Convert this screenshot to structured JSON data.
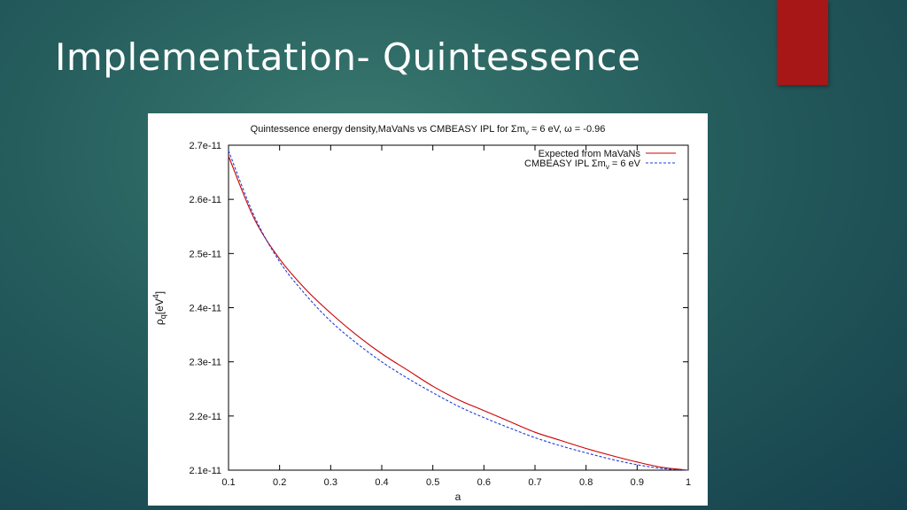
{
  "slide": {
    "title": "Implementation- Quintessence",
    "accent_color": "#a81717"
  },
  "chart_data": {
    "type": "line",
    "title": "Quintessence energy density,MaVaNs vs CMBEASY IPL for Σmν = 6 eV, ω = -0.96",
    "title_parts": {
      "prefix": "Quintessence energy density,MaVaNs vs CMBEASY IPL for Σm",
      "sub": "ν",
      "suffix": " = 6 eV, ω = -0.96"
    },
    "xlabel": "a",
    "ylabel": "ρq[eV4]",
    "ylabel_parts": {
      "base": "ρ",
      "sub": "q",
      "mid": "[eV",
      "sup": "4",
      "end": "]"
    },
    "xlim": [
      0.1,
      1
    ],
    "ylim": [
      2.1e-11,
      2.7e-11
    ],
    "x_ticks": [
      "0.1",
      "0.2",
      "0.3",
      "0.4",
      "0.5",
      "0.6",
      "0.7",
      "0.8",
      "0.9",
      "1"
    ],
    "y_ticks": [
      "2.1e-11",
      "2.2e-11",
      "2.3e-11",
      "2.4e-11",
      "2.5e-11",
      "2.6e-11",
      "2.7e-11"
    ],
    "grid": false,
    "legend_position": "top-right",
    "series": [
      {
        "name": "Expected from MaVaNs",
        "color": "#cc0000",
        "dash": "solid",
        "x": [
          0.1,
          0.15,
          0.2,
          0.25,
          0.3,
          0.35,
          0.4,
          0.45,
          0.5,
          0.55,
          0.6,
          0.65,
          0.7,
          0.75,
          0.8,
          0.85,
          0.9,
          0.95,
          1.0
        ],
        "y": [
          2.68e-11,
          2.565e-11,
          2.49e-11,
          2.435e-11,
          2.39e-11,
          2.35e-11,
          2.315e-11,
          2.285e-11,
          2.255e-11,
          2.23e-11,
          2.21e-11,
          2.19e-11,
          2.17e-11,
          2.155e-11,
          2.14e-11,
          2.127e-11,
          2.115e-11,
          2.105e-11,
          2.1e-11
        ]
      },
      {
        "name": "CMBEASY IPL  Σmν = 6 eV",
        "legend_parts": {
          "prefix": "CMBEASY IPL  Σm",
          "sub": "ν",
          "suffix": " = 6 eV"
        },
        "color": "#1f3fd6",
        "dash": "dashed",
        "x": [
          0.1,
          0.15,
          0.2,
          0.25,
          0.3,
          0.35,
          0.4,
          0.45,
          0.5,
          0.55,
          0.6,
          0.65,
          0.7,
          0.75,
          0.8,
          0.85,
          0.9,
          0.95,
          1.0
        ],
        "y": [
          2.69e-11,
          2.57e-11,
          2.485e-11,
          2.425e-11,
          2.375e-11,
          2.335e-11,
          2.3e-11,
          2.27e-11,
          2.243e-11,
          2.218e-11,
          2.197e-11,
          2.178e-11,
          2.16e-11,
          2.145e-11,
          2.132e-11,
          2.12e-11,
          2.11e-11,
          2.103e-11,
          2.1e-11
        ]
      }
    ]
  }
}
